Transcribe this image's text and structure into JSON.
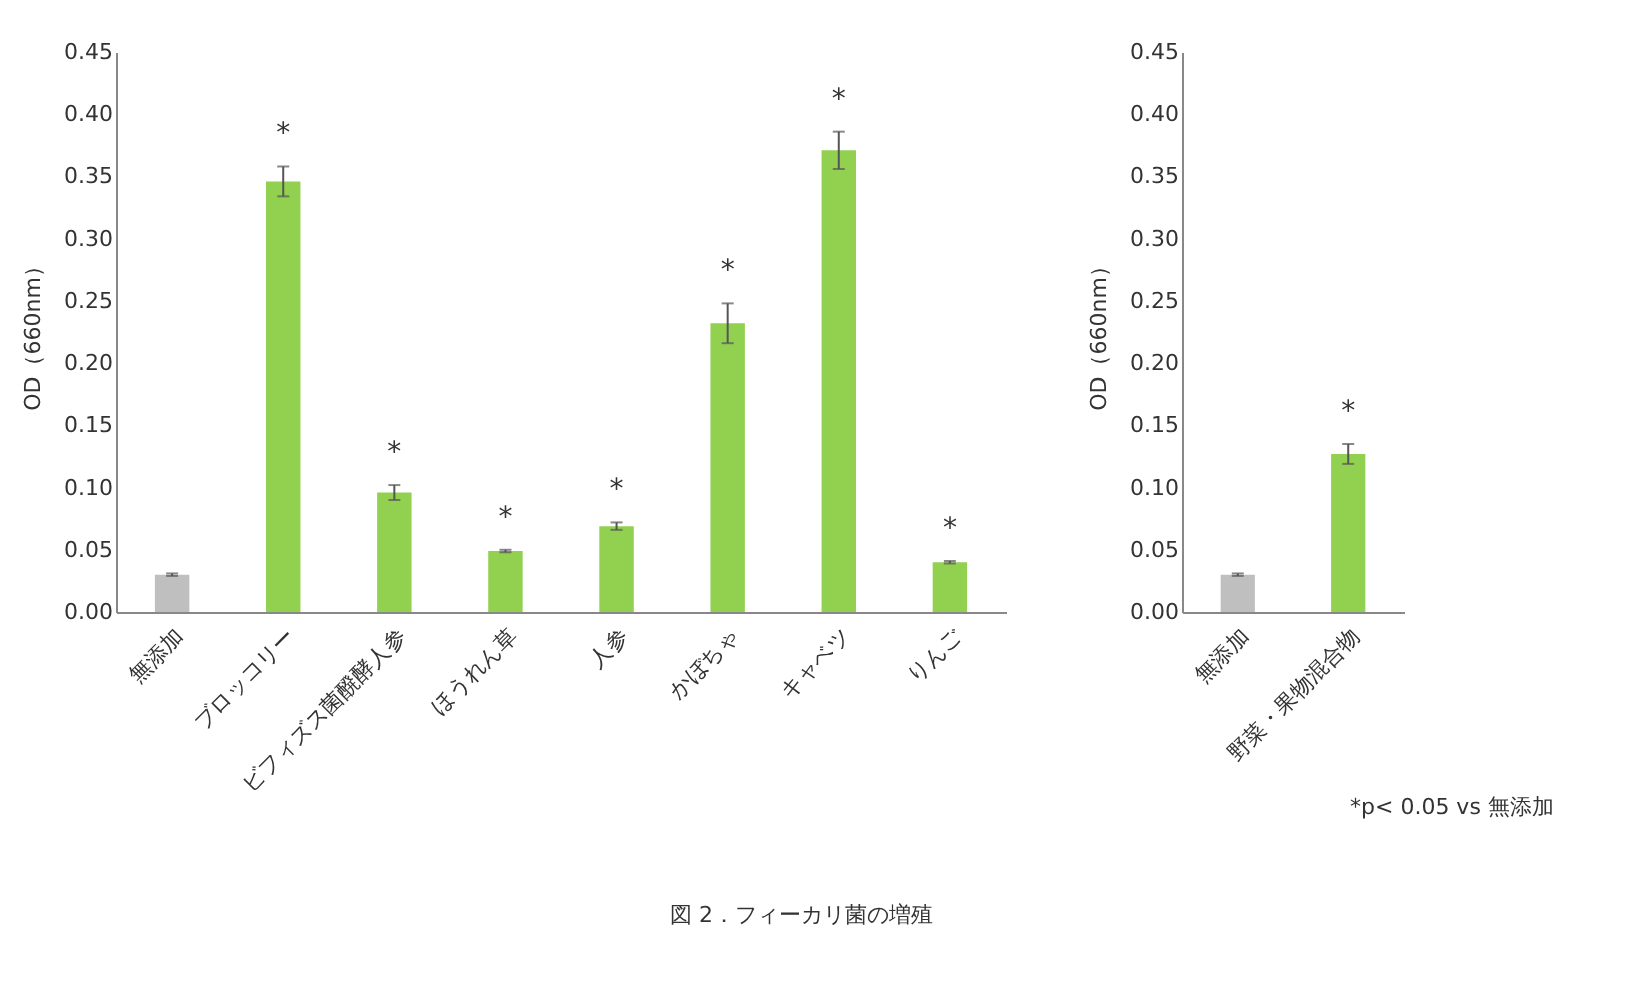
{
  "chart_data": [
    {
      "type": "bar",
      "ylabel": "OD（660nm）",
      "categories": [
        "無添加",
        "ブロッコリー",
        "ビフィズス菌醗酵人参",
        "ほうれん草",
        "人参",
        "かぼちゃ",
        "キャベツ",
        "りんご"
      ],
      "values": [
        0.03,
        0.346,
        0.096,
        0.049,
        0.069,
        0.232,
        0.371,
        0.04
      ],
      "colors": [
        "#bfbfbf",
        "#92d050",
        "#92d050",
        "#92d050",
        "#92d050",
        "#92d050",
        "#92d050",
        "#92d050"
      ],
      "errors": [
        0.001,
        0.012,
        0.006,
        0.001,
        0.003,
        0.016,
        0.015,
        0.001
      ],
      "ylim": [
        0,
        0.45
      ],
      "yticks": [
        {
          "value": 0,
          "label": "0.00"
        },
        {
          "value": 0.05,
          "label": "0.05"
        },
        {
          "value": 0.1,
          "label": "0.10"
        },
        {
          "value": 0.15,
          "label": "0.15"
        },
        {
          "value": 0.2,
          "label": "0.20"
        },
        {
          "value": 0.25,
          "label": "0.25"
        },
        {
          "value": 0.3,
          "label": "0.30"
        },
        {
          "value": 0.35,
          "label": "0.35"
        },
        {
          "value": 0.4,
          "label": "0.40"
        },
        {
          "value": 0.45,
          "label": "0.45"
        }
      ],
      "grid": false,
      "annotations": [
        {
          "text": "*",
          "x": "ブロッコリー",
          "y": 0.346
        },
        {
          "text": "*",
          "x": "ビフィズス菌醗酵人参",
          "y": 0.096
        },
        {
          "text": "*",
          "x": "ほうれん草",
          "y": 0.049
        },
        {
          "text": "*",
          "x": "人参",
          "y": 0.069
        },
        {
          "text": "*",
          "x": "かぼちゃ",
          "y": 0.232
        },
        {
          "text": "*",
          "x": "キャベツ",
          "y": 0.371
        },
        {
          "text": "*",
          "x": "りんご",
          "y": 0.04
        }
      ]
    },
    {
      "type": "bar",
      "ylabel": "OD（660nm）",
      "categories": [
        "無添加",
        "野菜・果物混合物"
      ],
      "values": [
        0.03,
        0.127
      ],
      "colors": [
        "#bfbfbf",
        "#92d050"
      ],
      "errors": [
        0.001,
        0.008
      ],
      "ylim": [
        0,
        0.45
      ],
      "yticks": [
        {
          "value": 0,
          "label": "0.00"
        },
        {
          "value": 0.05,
          "label": "0.05"
        },
        {
          "value": 0.1,
          "label": "0.10"
        },
        {
          "value": 0.15,
          "label": "0.15"
        },
        {
          "value": 0.2,
          "label": "0.20"
        },
        {
          "value": 0.25,
          "label": "0.25"
        },
        {
          "value": 0.3,
          "label": "0.30"
        },
        {
          "value": 0.35,
          "label": "0.35"
        },
        {
          "value": 0.4,
          "label": "0.40"
        },
        {
          "value": 0.45,
          "label": "0.45"
        }
      ],
      "grid": false,
      "annotations": [
        {
          "text": "*",
          "x": "野菜・果物混合物",
          "y": 0.127
        },
        "*p< 0.05 vs 無添加",
        "図 2．フィーカリ菌の増殖"
      ]
    }
  ]
}
